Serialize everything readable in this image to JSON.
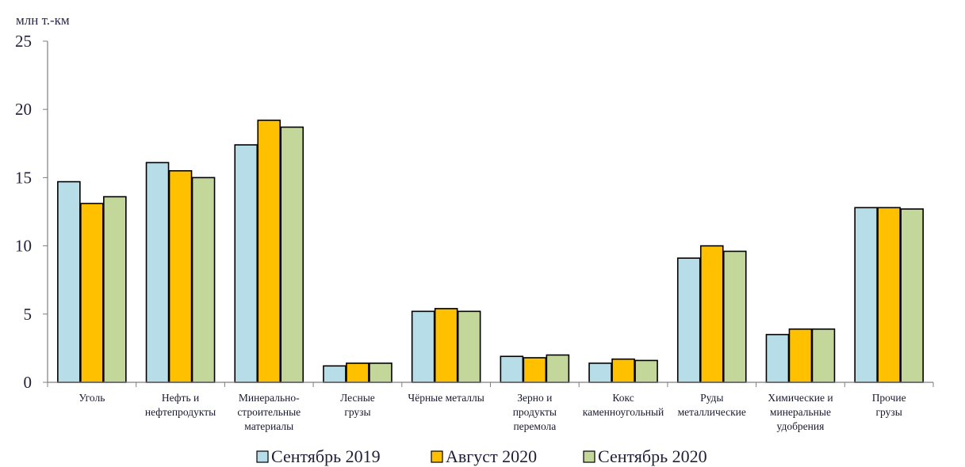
{
  "chart_data": {
    "type": "bar",
    "title": "",
    "ylabel": "млн т.-км",
    "xlabel": "",
    "ylim": [
      0,
      25
    ],
    "yticks": [
      "0",
      "5",
      "10",
      "15",
      "20",
      "25"
    ],
    "grid": false,
    "legend_position": "bottom",
    "categories": [
      [
        "Уголь"
      ],
      [
        "Нефть и",
        "нефтепродукты"
      ],
      [
        "Минерально-",
        "строительные",
        "материалы"
      ],
      [
        "Лесные",
        "грузы"
      ],
      [
        "Чёрные металлы"
      ],
      [
        "Зерно и",
        "продукты",
        "перемола"
      ],
      [
        "Кокс",
        "каменноугольный"
      ],
      [
        "Руды",
        "металлические"
      ],
      [
        "Химические и",
        "минеральные",
        "удобрения"
      ],
      [
        "Прочие",
        "грузы"
      ]
    ],
    "series": [
      {
        "name": "Сентябрь 2019",
        "color": "#b7dde8",
        "values": [
          14.7,
          16.1,
          17.4,
          1.2,
          5.2,
          1.9,
          1.4,
          9.1,
          3.5,
          12.8
        ]
      },
      {
        "name": "Август 2020",
        "color": "#ffc000",
        "values": [
          13.1,
          15.5,
          19.2,
          1.4,
          5.4,
          1.8,
          1.7,
          10.0,
          3.9,
          12.8
        ]
      },
      {
        "name": "Сентябрь 2020",
        "color": "#c4d79b",
        "values": [
          13.6,
          15.0,
          18.7,
          1.4,
          5.2,
          2.0,
          1.6,
          9.6,
          3.9,
          12.7
        ]
      }
    ]
  }
}
